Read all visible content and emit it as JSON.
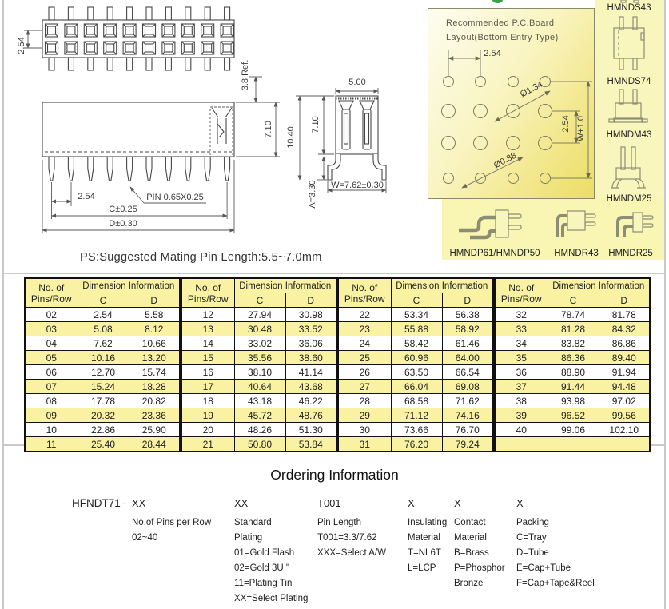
{
  "drawings": {
    "note": "PS:Suggested Mating Pin Length:5.5~7.0mm",
    "top_view": {
      "row_pitch_label": "2.54"
    },
    "front_view": {
      "pin_pitch_label": "2.54",
      "pin_label": "PIN  0.65X0.25",
      "c_label": "C±0.25",
      "d_label": "D±0.30",
      "ref_label": "3.8 Ref.",
      "height_label": "7.10"
    },
    "side_view": {
      "width_label": "5.00",
      "overall_height_label": "10.40",
      "body_height_label": "7.10",
      "tail_label": "A=3.30",
      "row_width_label": "W=7.62±0.30"
    },
    "pcb_layout": {
      "title_line1": "Recommended  P.C.Board",
      "title_line2": "Layout(Bottom  Entry  Type)",
      "pitch_h": "2.54",
      "pitch_v": "2.54",
      "hole_large": "Ø1.34",
      "hole_small": "Ø0.88",
      "width_ref": "W+1.0"
    }
  },
  "variants": {
    "right_column": [
      {
        "label": "HMNDS43"
      },
      {
        "label": "HMNDS74"
      },
      {
        "label": "HMNDM43"
      },
      {
        "label": "HMNDM25"
      }
    ],
    "bottom_row": [
      {
        "label": "HMNDP61/HMNDP50"
      },
      {
        "label": "HMNDR43"
      },
      {
        "label": "HMNDR25"
      }
    ]
  },
  "table": {
    "headers": {
      "pins_line1": "No. of",
      "pins_line2": "Pins/Row",
      "dim": "Dimension Information",
      "c": "C",
      "d": "D"
    },
    "groups": [
      {
        "rows": [
          [
            "02",
            "2.54",
            "5.58"
          ],
          [
            "03",
            "5.08",
            "8.12"
          ],
          [
            "04",
            "7.62",
            "10.66"
          ],
          [
            "05",
            "10.16",
            "13.20"
          ],
          [
            "06",
            "12.70",
            "15.74"
          ],
          [
            "07",
            "15.24",
            "18.28"
          ],
          [
            "08",
            "17.78",
            "20.82"
          ],
          [
            "09",
            "20.32",
            "23.36"
          ],
          [
            "10",
            "22.86",
            "25.90"
          ],
          [
            "11",
            "25.40",
            "28.44"
          ]
        ]
      },
      {
        "rows": [
          [
            "12",
            "27.94",
            "30.98"
          ],
          [
            "13",
            "30.48",
            "33.52"
          ],
          [
            "14",
            "33.02",
            "36.06"
          ],
          [
            "15",
            "35.56",
            "38.60"
          ],
          [
            "16",
            "38.10",
            "41.14"
          ],
          [
            "17",
            "40.64",
            "43.68"
          ],
          [
            "18",
            "43.18",
            "46.22"
          ],
          [
            "19",
            "45.72",
            "48.76"
          ],
          [
            "20",
            "48.26",
            "51.30"
          ],
          [
            "21",
            "50.80",
            "53.84"
          ]
        ]
      },
      {
        "rows": [
          [
            "22",
            "53.34",
            "56.38"
          ],
          [
            "23",
            "55.88",
            "58.92"
          ],
          [
            "24",
            "58.42",
            "61.46"
          ],
          [
            "25",
            "60.96",
            "64.00"
          ],
          [
            "26",
            "63.50",
            "66.54"
          ],
          [
            "27",
            "66.04",
            "69.08"
          ],
          [
            "28",
            "68.58",
            "71.62"
          ],
          [
            "29",
            "71.12",
            "74.16"
          ],
          [
            "30",
            "73.66",
            "76.70"
          ],
          [
            "31",
            "76.20",
            "79.24"
          ]
        ]
      },
      {
        "rows": [
          [
            "32",
            "78.74",
            "81.78"
          ],
          [
            "33",
            "81.28",
            "84.32"
          ],
          [
            "34",
            "83.82",
            "86.86"
          ],
          [
            "35",
            "86.36",
            "89.40"
          ],
          [
            "36",
            "88.90",
            "91.94"
          ],
          [
            "37",
            "91.44",
            "94.48"
          ],
          [
            "38",
            "93.98",
            "97.02"
          ],
          [
            "39",
            "96.52",
            "99.56"
          ],
          [
            "40",
            "99.06",
            "102.10"
          ],
          [
            "",
            "",
            ""
          ]
        ]
      }
    ]
  },
  "ordering": {
    "title": "Ordering Information",
    "part_number": "HFNDT71",
    "separator": "-",
    "columns": [
      {
        "code": "XX",
        "lines": [
          "No.of Pins per Row",
          "02~40"
        ]
      },
      {
        "code": "XX",
        "lines": [
          "Standard",
          "Plating",
          "01=Gold Flash",
          "02=Gold 3U \"",
          "11=Plating Tin",
          "XX=Select Plating"
        ]
      },
      {
        "code": "T001",
        "lines": [
          "Pin Length",
          "T001=3.3/7.62",
          "XXX=Select A/W"
        ]
      },
      {
        "code": "X",
        "lines": [
          "Insulating",
          "Material",
          "T=NL6T",
          "L=LCP"
        ]
      },
      {
        "code": "X",
        "lines": [
          "Contact",
          "Material",
          "B=Brass",
          "P=Phosphor",
          "Bronze"
        ]
      },
      {
        "code": "X",
        "lines": [
          "Packing",
          "C=Tray",
          "D=Tube",
          "E=Cap+Tube",
          "F=Cap+Tape&Reel"
        ]
      }
    ]
  },
  "colors": {
    "panel_yellow": "#f9f5b2",
    "table_yellow": "#f8f2a2",
    "accent_green": "#3aa048",
    "line_gray": "#c9c9c9"
  }
}
